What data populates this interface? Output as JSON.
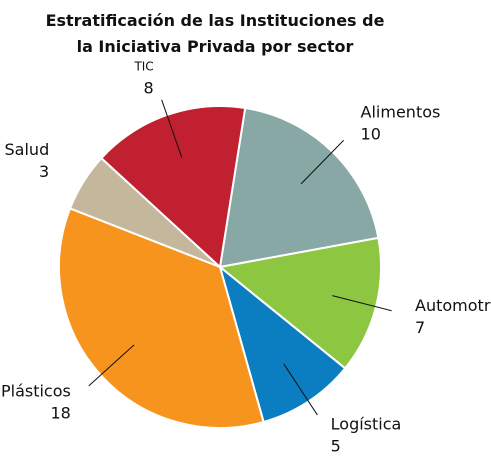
{
  "chart_data": {
    "type": "pie",
    "title": "Estratificación de las Instituciones de la Iniciativa Privada por sector",
    "categories": [
      "Alimentos",
      "Automotriz",
      "Logística",
      "Plásticos",
      "Salud",
      "TIC"
    ],
    "values": [
      10,
      7,
      5,
      18,
      3,
      8
    ],
    "colors": [
      "#87a8a4",
      "#8dc641",
      "#0b7dc1",
      "#f7941d",
      "#c4b79c",
      "#c0202f"
    ]
  }
}
